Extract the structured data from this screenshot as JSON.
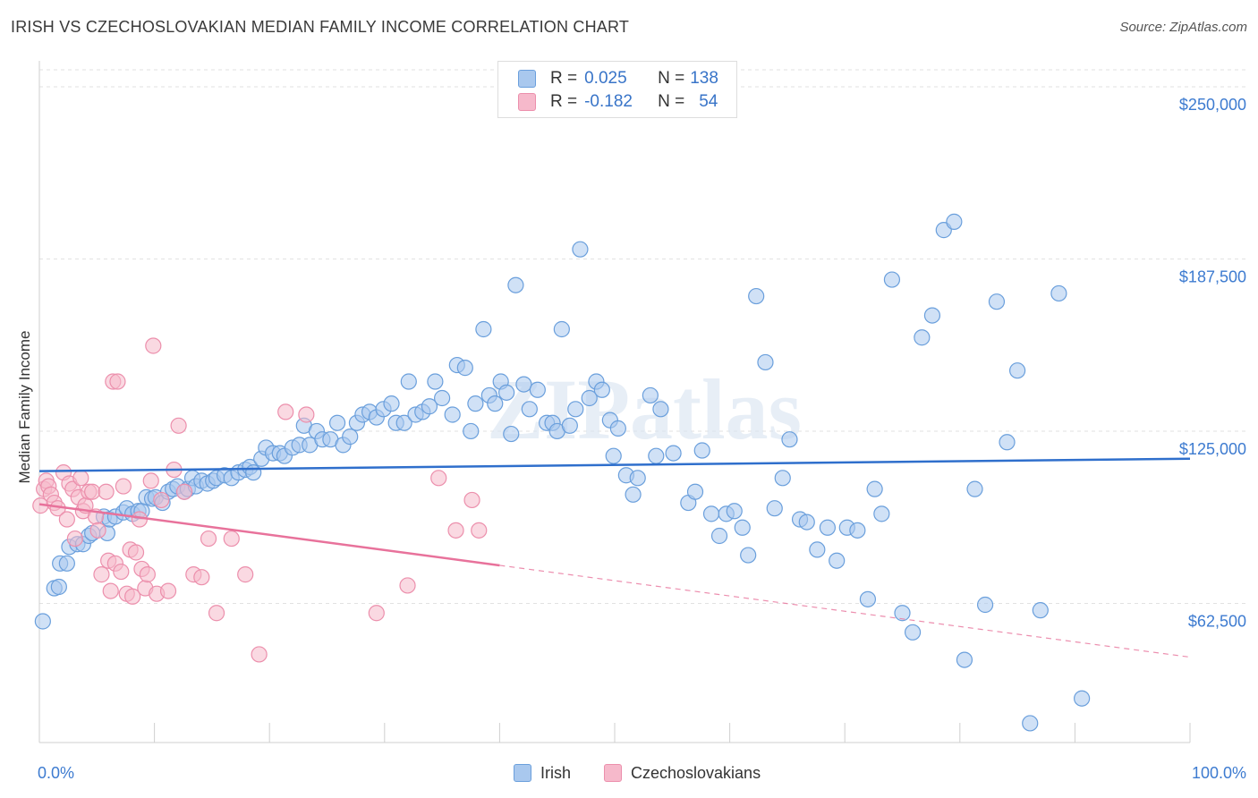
{
  "title": "IRISH VS CZECHOSLOVAKIAN MEDIAN FAMILY INCOME CORRELATION CHART",
  "source": "Source: ZipAtlas.com",
  "watermark": "ZIPatlas",
  "legend": {
    "irish": {
      "r_label": "R = ",
      "r_value": "0.025",
      "n_label": "N = ",
      "n_value": "138"
    },
    "czech": {
      "r_label": "R = ",
      "r_value": "-0.182",
      "n_label": "N = ",
      "n_value": "54"
    }
  },
  "colors": {
    "irish_fill": "#a9c8ee",
    "irish_stroke": "#6a9fdc",
    "irish_line": "#2f6fcc",
    "czech_fill": "#f6b9cb",
    "czech_stroke": "#ec8fac",
    "czech_line": "#e8729b",
    "axis_text": "#3d7bd0",
    "grid": "#e2e2e2"
  },
  "chart_data": {
    "type": "scatter",
    "title": "IRISH VS CZECHOSLOVAKIAN MEDIAN FAMILY INCOME CORRELATION CHART",
    "xlabel": "",
    "ylabel": "Median Family Income",
    "xlim": [
      0,
      100
    ],
    "ylim": [
      12000,
      262000
    ],
    "x_tick_labels": [
      "0.0%",
      "100.0%"
    ],
    "y_ticks": [
      62500,
      125000,
      187500,
      250000
    ],
    "y_tick_labels": [
      "$62,500",
      "$125,000",
      "$187,500",
      "$250,000"
    ],
    "series": [
      {
        "name": "Irish",
        "r": 0.025,
        "n": 138,
        "trend": {
          "x": [
            0,
            100
          ],
          "y": [
            110500,
            115000
          ],
          "dashed_from": null
        },
        "points": [
          [
            0.3,
            56000
          ],
          [
            1.3,
            68000
          ],
          [
            1.7,
            68500
          ],
          [
            1.8,
            77000
          ],
          [
            2.4,
            77000
          ],
          [
            2.6,
            83000
          ],
          [
            3.3,
            84000
          ],
          [
            3.8,
            84000
          ],
          [
            4.3,
            87000
          ],
          [
            4.6,
            88000
          ],
          [
            5.6,
            94000
          ],
          [
            5.9,
            88000
          ],
          [
            6.1,
            93000
          ],
          [
            6.6,
            94000
          ],
          [
            7.3,
            95500
          ],
          [
            7.6,
            97000
          ],
          [
            8.1,
            95000
          ],
          [
            8.6,
            96000
          ],
          [
            8.9,
            96000
          ],
          [
            9.3,
            101000
          ],
          [
            9.8,
            100500
          ],
          [
            10.1,
            101000
          ],
          [
            10.7,
            99000
          ],
          [
            11.2,
            103000
          ],
          [
            11.6,
            104000
          ],
          [
            12.0,
            105000
          ],
          [
            12.6,
            103000
          ],
          [
            12.9,
            104000
          ],
          [
            13.3,
            108000
          ],
          [
            13.6,
            105000
          ],
          [
            14.1,
            107000
          ],
          [
            14.6,
            106000
          ],
          [
            15.1,
            107000
          ],
          [
            15.4,
            108000
          ],
          [
            16.1,
            109000
          ],
          [
            16.7,
            108000
          ],
          [
            17.3,
            110000
          ],
          [
            17.9,
            111000
          ],
          [
            18.3,
            112000
          ],
          [
            18.6,
            110000
          ],
          [
            19.3,
            115000
          ],
          [
            19.7,
            119000
          ],
          [
            20.3,
            117000
          ],
          [
            20.9,
            117000
          ],
          [
            21.3,
            116000
          ],
          [
            22.0,
            119000
          ],
          [
            22.6,
            120000
          ],
          [
            23.0,
            127000
          ],
          [
            23.5,
            120000
          ],
          [
            24.1,
            125000
          ],
          [
            24.6,
            122000
          ],
          [
            25.3,
            122000
          ],
          [
            25.9,
            128000
          ],
          [
            26.4,
            120000
          ],
          [
            27.0,
            123000
          ],
          [
            27.6,
            128000
          ],
          [
            28.1,
            131000
          ],
          [
            28.7,
            132000
          ],
          [
            29.3,
            130000
          ],
          [
            29.9,
            133000
          ],
          [
            30.6,
            135000
          ],
          [
            31.0,
            128000
          ],
          [
            31.7,
            128000
          ],
          [
            32.1,
            143000
          ],
          [
            32.7,
            131000
          ],
          [
            33.3,
            132000
          ],
          [
            33.9,
            134000
          ],
          [
            34.4,
            143000
          ],
          [
            35.0,
            137000
          ],
          [
            35.9,
            131000
          ],
          [
            36.3,
            149000
          ],
          [
            37.0,
            148000
          ],
          [
            37.5,
            125000
          ],
          [
            37.9,
            135000
          ],
          [
            38.6,
            162000
          ],
          [
            39.1,
            138000
          ],
          [
            39.6,
            135000
          ],
          [
            40.1,
            143000
          ],
          [
            40.6,
            139000
          ],
          [
            41.0,
            124000
          ],
          [
            41.4,
            178000
          ],
          [
            42.1,
            142000
          ],
          [
            42.6,
            133000
          ],
          [
            43.3,
            140000
          ],
          [
            44.1,
            128000
          ],
          [
            44.6,
            128000
          ],
          [
            45.0,
            125000
          ],
          [
            45.4,
            162000
          ],
          [
            46.1,
            127000
          ],
          [
            46.6,
            133000
          ],
          [
            47.0,
            191000
          ],
          [
            47.8,
            137000
          ],
          [
            48.4,
            143000
          ],
          [
            48.9,
            140000
          ],
          [
            49.6,
            129000
          ],
          [
            49.9,
            116000
          ],
          [
            50.3,
            126000
          ],
          [
            51.0,
            109000
          ],
          [
            51.6,
            102000
          ],
          [
            52.0,
            108000
          ],
          [
            53.1,
            138000
          ],
          [
            53.6,
            116000
          ],
          [
            54.0,
            133000
          ],
          [
            55.1,
            117000
          ],
          [
            56.4,
            99000
          ],
          [
            57.0,
            103000
          ],
          [
            57.6,
            118000
          ],
          [
            58.4,
            95000
          ],
          [
            59.1,
            87000
          ],
          [
            59.7,
            95000
          ],
          [
            60.4,
            96000
          ],
          [
            61.1,
            90000
          ],
          [
            61.6,
            80000
          ],
          [
            62.3,
            174000
          ],
          [
            63.1,
            150000
          ],
          [
            63.9,
            97000
          ],
          [
            64.6,
            108000
          ],
          [
            65.2,
            122000
          ],
          [
            66.1,
            93000
          ],
          [
            66.7,
            92000
          ],
          [
            67.6,
            82000
          ],
          [
            68.5,
            90000
          ],
          [
            69.3,
            78000
          ],
          [
            70.2,
            90000
          ],
          [
            71.1,
            89000
          ],
          [
            72.0,
            64000
          ],
          [
            72.6,
            104000
          ],
          [
            73.2,
            95000
          ],
          [
            74.1,
            180000
          ],
          [
            75.0,
            59000
          ],
          [
            75.9,
            52000
          ],
          [
            76.7,
            159000
          ],
          [
            77.6,
            167000
          ],
          [
            78.6,
            198000
          ],
          [
            79.5,
            201000
          ],
          [
            80.4,
            42000
          ],
          [
            81.3,
            104000
          ],
          [
            82.2,
            62000
          ],
          [
            83.2,
            172000
          ],
          [
            84.1,
            121000
          ],
          [
            85.0,
            147000
          ],
          [
            86.1,
            19000
          ],
          [
            87.0,
            60000
          ],
          [
            88.6,
            175000
          ],
          [
            90.6,
            28000
          ]
        ]
      },
      {
        "name": "Czechoslovakians",
        "r": -0.182,
        "n": 54,
        "trend": {
          "x": [
            0,
            100
          ],
          "y": [
            98500,
            43000
          ],
          "dashed_from": 40
        },
        "points": [
          [
            0.1,
            98000
          ],
          [
            0.4,
            104000
          ],
          [
            0.6,
            107000
          ],
          [
            0.8,
            105000
          ],
          [
            1.0,
            102000
          ],
          [
            1.3,
            99000
          ],
          [
            1.6,
            97000
          ],
          [
            2.1,
            110000
          ],
          [
            2.4,
            93000
          ],
          [
            2.6,
            106000
          ],
          [
            2.9,
            104000
          ],
          [
            3.1,
            86000
          ],
          [
            3.4,
            101000
          ],
          [
            3.6,
            108000
          ],
          [
            3.8,
            96000
          ],
          [
            4.0,
            98000
          ],
          [
            4.3,
            103000
          ],
          [
            4.6,
            103000
          ],
          [
            4.9,
            94000
          ],
          [
            5.1,
            89000
          ],
          [
            5.4,
            73000
          ],
          [
            5.8,
            103000
          ],
          [
            6.0,
            78000
          ],
          [
            6.2,
            67000
          ],
          [
            6.4,
            143000
          ],
          [
            6.6,
            77000
          ],
          [
            6.8,
            143000
          ],
          [
            7.1,
            74000
          ],
          [
            7.3,
            105000
          ],
          [
            7.6,
            66000
          ],
          [
            7.9,
            82000
          ],
          [
            8.1,
            65000
          ],
          [
            8.4,
            81000
          ],
          [
            8.7,
            93000
          ],
          [
            8.9,
            75000
          ],
          [
            9.2,
            68000
          ],
          [
            9.4,
            73000
          ],
          [
            9.7,
            107000
          ],
          [
            9.9,
            156000
          ],
          [
            10.2,
            66000
          ],
          [
            10.6,
            100000
          ],
          [
            11.2,
            67000
          ],
          [
            11.7,
            111000
          ],
          [
            12.1,
            127000
          ],
          [
            12.6,
            103000
          ],
          [
            13.4,
            73000
          ],
          [
            14.1,
            72000
          ],
          [
            14.7,
            86000
          ],
          [
            15.4,
            59000
          ],
          [
            16.7,
            86000
          ],
          [
            17.9,
            73000
          ],
          [
            19.1,
            44000
          ],
          [
            21.4,
            132000
          ],
          [
            23.2,
            131000
          ],
          [
            29.3,
            59000
          ],
          [
            32.0,
            69000
          ],
          [
            34.7,
            108000
          ],
          [
            36.2,
            89000
          ],
          [
            37.6,
            100000
          ],
          [
            38.2,
            89000
          ]
        ]
      }
    ]
  },
  "bottom_legend": [
    "Irish",
    "Czechoslovakians"
  ]
}
